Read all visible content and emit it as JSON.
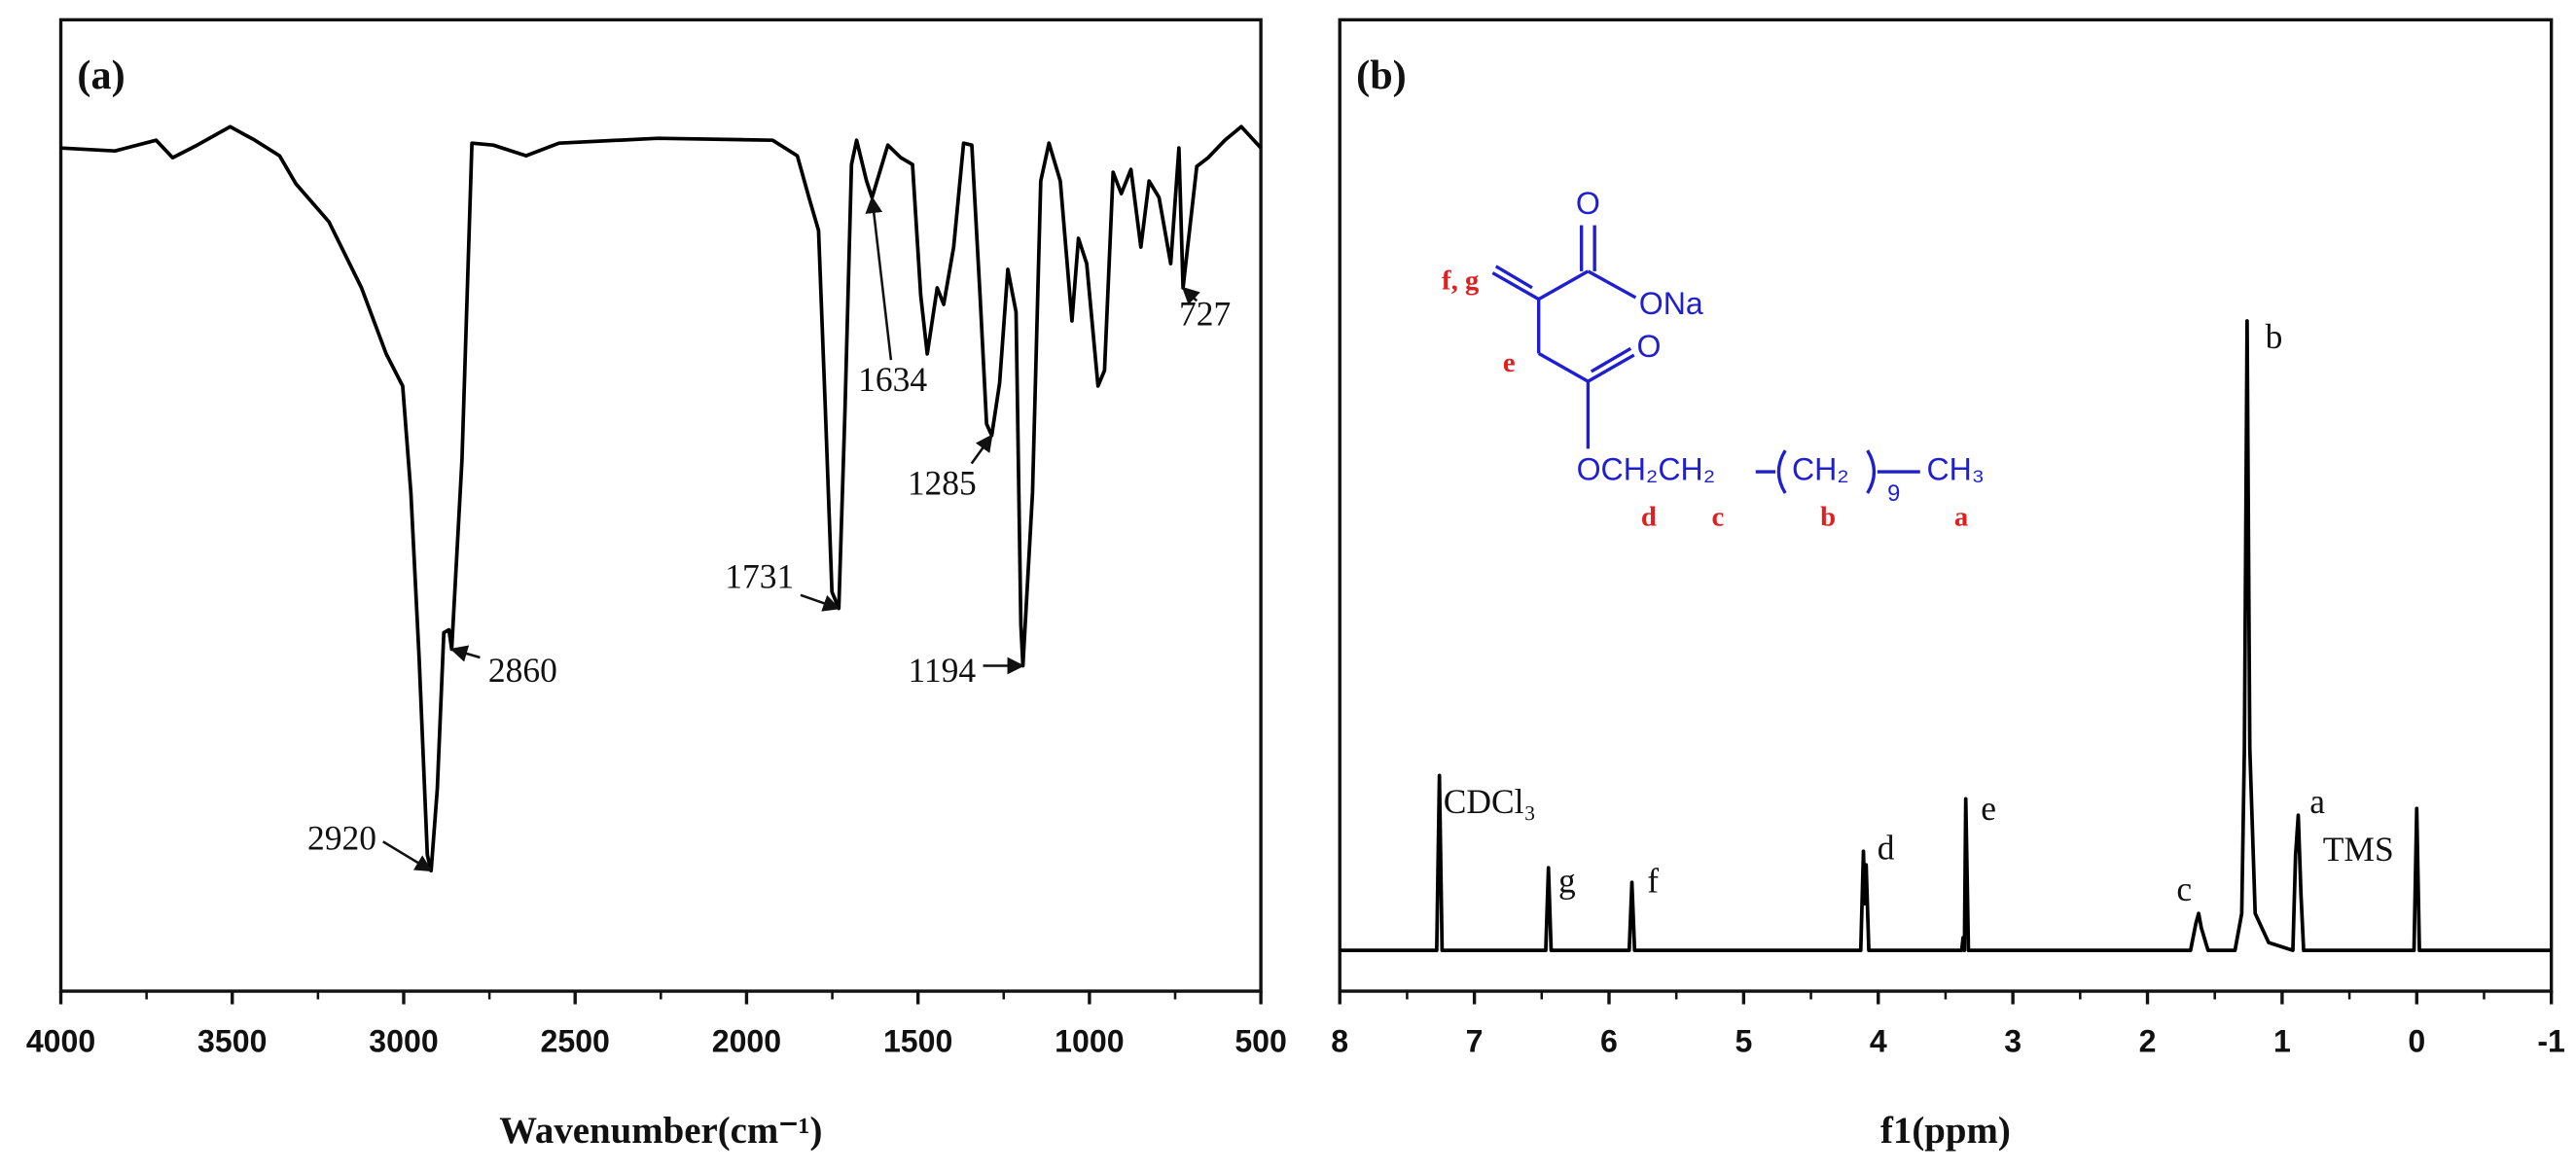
{
  "chart_data": [
    {
      "type": "line",
      "panel_label": "(a)",
      "x_label": "Wavenumber(cm⁻¹)",
      "xlim": [
        4000,
        500
      ],
      "xticks": [
        4000,
        3500,
        3000,
        2500,
        2000,
        1500,
        1000,
        500
      ],
      "ylim": [
        0,
        100
      ],
      "color": "#000000",
      "x": [
        4000,
        3842,
        3722,
        3674,
        3602,
        3506,
        3434,
        3362,
        3314,
        3218,
        3123,
        3051,
        3003,
        2979,
        2955,
        2931,
        2920,
        2902,
        2883,
        2868,
        2860,
        2830,
        2801,
        2739,
        2643,
        2547,
        2259,
        1924,
        1852,
        1818,
        1790,
        1770,
        1751,
        1731,
        1713,
        1694,
        1679,
        1650,
        1634,
        1588,
        1550,
        1516,
        1492,
        1473,
        1444,
        1425,
        1396,
        1367,
        1343,
        1319,
        1300,
        1285,
        1262,
        1238,
        1214,
        1200,
        1194,
        1166,
        1142,
        1118,
        1085,
        1051,
        1032,
        1008,
        975,
        956,
        931,
        907,
        879,
        850,
        826,
        797,
        763,
        739,
        727,
        687,
        654,
        605,
        557,
        500
      ],
      "values": [
        86.8,
        86.5,
        87.6,
        85.8,
        87.1,
        89.0,
        87.6,
        86.0,
        83.1,
        79.2,
        72.4,
        65.6,
        62.3,
        51.3,
        34.3,
        14.0,
        12.4,
        20.8,
        36.9,
        37.2,
        35.2,
        54.7,
        87.3,
        87.1,
        86.0,
        87.3,
        87.8,
        87.6,
        86.0,
        81.7,
        78.3,
        59.7,
        41.1,
        39.4,
        59.7,
        85.1,
        87.6,
        83.4,
        81.7,
        87.1,
        85.8,
        85.1,
        71.6,
        65.6,
        72.4,
        70.7,
        76.6,
        87.3,
        87.1,
        71.6,
        58.4,
        57.2,
        62.6,
        74.3,
        69.9,
        37.7,
        33.5,
        51.3,
        83.4,
        87.3,
        83.4,
        69.0,
        77.5,
        74.9,
        62.3,
        63.9,
        84.3,
        82.1,
        84.6,
        76.6,
        83.4,
        81.7,
        74.9,
        86.8,
        72.4,
        84.9,
        85.8,
        87.6,
        89.0,
        86.8
      ],
      "annotations": [
        {
          "text": "2920",
          "x": 2920,
          "y": 12.4
        },
        {
          "text": "2860",
          "x": 2860,
          "y": 35.2
        },
        {
          "text": "1731",
          "x": 1731,
          "y": 39.4
        },
        {
          "text": "1634",
          "x": 1634,
          "y": 81.7
        },
        {
          "text": "1285",
          "x": 1285,
          "y": 57.2
        },
        {
          "text": "1194",
          "x": 1194,
          "y": 33.5
        },
        {
          "text": "727",
          "x": 727,
          "y": 72.4
        }
      ]
    },
    {
      "type": "line",
      "panel_label": "(b)",
      "x_label": "f1(ppm)",
      "xlim": [
        8,
        -1
      ],
      "xticks": [
        8,
        7,
        6,
        5,
        4,
        3,
        2,
        1,
        0,
        -1
      ],
      "ylim": [
        0,
        100
      ],
      "color": "#000000",
      "x": [
        8,
        7.28,
        7.26,
        7.24,
        6.47,
        6.45,
        6.43,
        5.85,
        5.83,
        5.81,
        4.13,
        4.11,
        4.1,
        4.09,
        4.07,
        3.38,
        3.37,
        3.36,
        3.35,
        3.33,
        1.68,
        1.64,
        1.62,
        1.6,
        1.55,
        1.35,
        1.3,
        1.28,
        1.26,
        1.24,
        1.2,
        1.1,
        0.92,
        0.9,
        0.88,
        0.86,
        0.84,
        0.02,
        0,
        -0.02,
        -1
      ],
      "values": [
        4.2,
        4.2,
        22.2,
        4.2,
        4.2,
        12.7,
        4.2,
        4.2,
        11.2,
        4.2,
        4.2,
        14.4,
        9,
        13,
        4.2,
        4.2,
        5.5,
        4.2,
        19.8,
        4.2,
        4.2,
        7,
        8.0,
        6.5,
        4.2,
        4.2,
        8.0,
        25,
        69.0,
        25,
        8,
        5,
        4.2,
        14,
        18.1,
        10,
        4.2,
        4.2,
        18.8,
        4.2,
        4.2
      ],
      "annotations": [
        {
          "text": "CDCl₃",
          "x": 7.26,
          "y": 22.2
        },
        {
          "text": "g",
          "x": 6.45,
          "y": 12.7
        },
        {
          "text": "f",
          "x": 5.83,
          "y": 11.2
        },
        {
          "text": "d",
          "x": 4.11,
          "y": 14.4
        },
        {
          "text": "e",
          "x": 3.35,
          "y": 19.8
        },
        {
          "text": "c",
          "x": 1.62,
          "y": 8.0
        },
        {
          "text": "b",
          "x": 1.26,
          "y": 69.0
        },
        {
          "text": "a",
          "x": 0.88,
          "y": 18.1
        },
        {
          "text": "TMS",
          "x": 0,
          "y": 18.8
        }
      ],
      "structure": {
        "atoms": [
          "O",
          "ONa",
          "O",
          "OCH₂CH₂",
          "CH₂",
          "9",
          "CH₃"
        ],
        "labels": [
          "f, g",
          "e",
          "d",
          "c",
          "b",
          "a"
        ]
      }
    }
  ]
}
